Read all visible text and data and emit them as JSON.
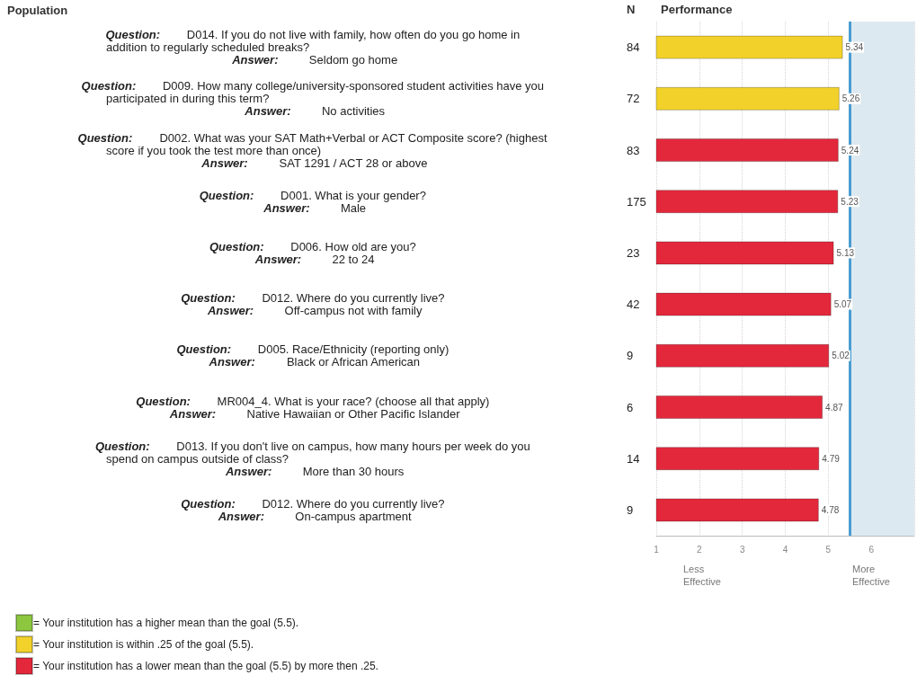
{
  "chart_data": {
    "type": "bar",
    "orientation": "horizontal",
    "stacked": true,
    "title": "Performance",
    "y2label": "N",
    "categories": [
      "Question: D014. If you do not live with family, how often do you go home in\naddition to regularly scheduled breaks?\nAnswer: Seldom go home",
      "Question: D009. How many college/university-sponsored student activities have you\nparticipated in during this term?\nAnswer: No activities",
      "Question: D002. What was your SAT Math+Verbal or ACT Composite score? (highest\nscore if you took the test more than once)\nAnswer: SAT 1291 / ACT 28 or above",
      "Question: D001. What is your gender?\nAnswer: Male",
      "Question: D006. How old are you?\nAnswer: 22 to 24",
      "Question: D012. Where do you currently live?\nAnswer: Off-campus not with family",
      "Question: D005. Race/Ethnicity (reporting only)\nAnswer: Black or African American",
      "Question: MR004_4. What is your race? (choose all that apply)\nAnswer: Native Hawaiian or Other Pacific Islander",
      "Question: D013. If you don't live on campus, how many hours per week do you\nspend on campus outside of class?\nAnswer: More than 30 hours",
      "Question: D012. Where do you currently live?\nAnswer: On-campus apartment"
    ],
    "y2_categories": [
      "84",
      "72",
      "83",
      "175",
      "23",
      "42",
      "9",
      "6",
      "14",
      "9"
    ],
    "series": [
      {
        "name": "= Your institution has a higher mean than the goal (5.5).",
        "color": "#8dc63f",
        "values": [
          null,
          null,
          null,
          null,
          null,
          null,
          null,
          null,
          null,
          null
        ]
      },
      {
        "name": "= Your institution is within .25 of the goal (5.5).",
        "color": "#f2d22a",
        "values": [
          5.34,
          5.26,
          null,
          null,
          null,
          null,
          null,
          null,
          null,
          null
        ]
      },
      {
        "name": "= Your institution has a lower mean than the goal (5.5) by more then .25.",
        "color": "#e3283c",
        "values": [
          null,
          null,
          5.24,
          5.23,
          5.13,
          5.07,
          5.02,
          4.87,
          4.79,
          4.78
        ]
      }
    ],
    "xlim": [
      1,
      7
    ],
    "xticks": [
      1,
      2,
      3,
      4,
      5,
      6
    ],
    "grid": "x",
    "data_labels": true,
    "legend": "bottom left",
    "ref_lines": [
      {
        "axis": "x",
        "value": 5.5,
        "color": "#4a9cd0"
      }
    ],
    "bands": [
      {
        "axis": "x",
        "from": 5.5,
        "to": 7,
        "color": "#dde9f0"
      }
    ],
    "annotations": [
      "Population",
      "Less\nEffective",
      "More\nEffective"
    ]
  }
}
